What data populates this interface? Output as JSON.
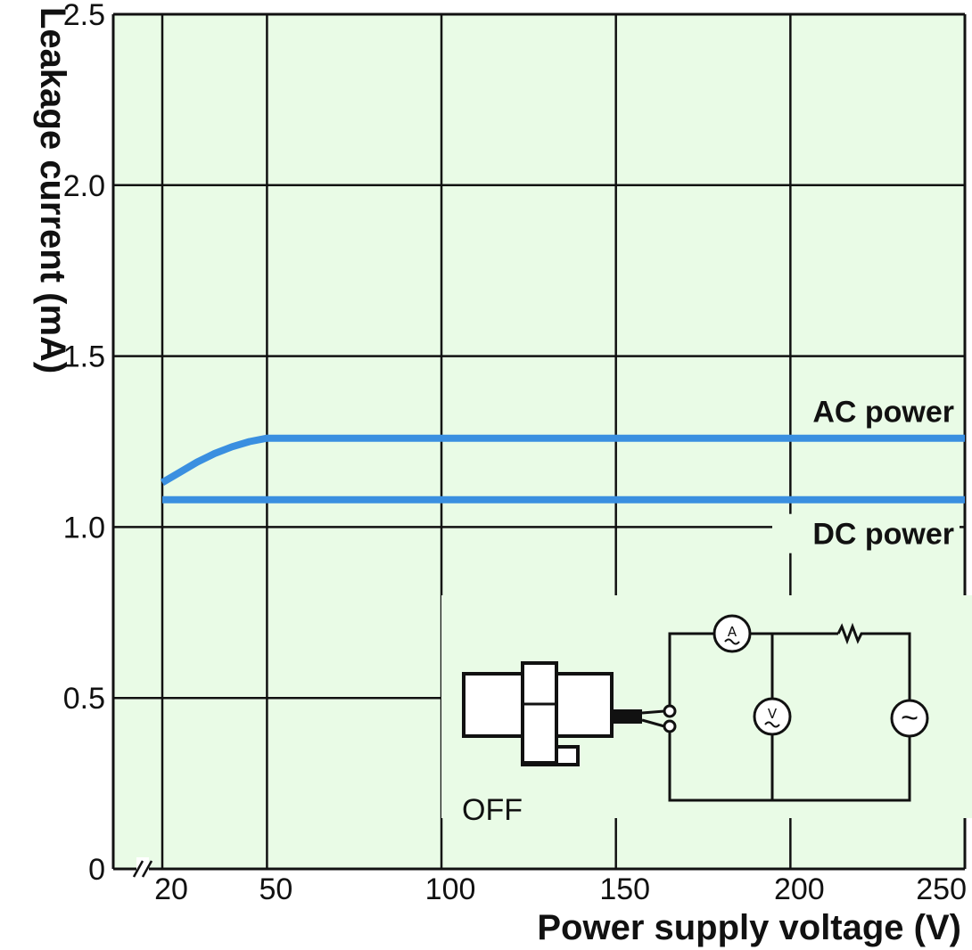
{
  "chart_data": {
    "type": "line",
    "xlabel": "Power supply voltage (V)",
    "ylabel": "Leakage current (mA)",
    "xlim": [
      20,
      250
    ],
    "ylim": [
      0,
      2.5
    ],
    "x_ticks": [
      20,
      50,
      100,
      150,
      200,
      250
    ],
    "y_ticks": [
      0,
      0.5,
      1.0,
      1.5,
      2.0,
      2.5
    ],
    "y_tick_labels": [
      "0",
      "0.5",
      "1.0",
      "1.5",
      "2.0",
      "2.5"
    ],
    "grid": true,
    "axis_break": "x-start",
    "series": [
      {
        "name": "AC power",
        "color": "#3a8fe0",
        "x": [
          20,
          25,
          30,
          35,
          40,
          45,
          50,
          100,
          150,
          200,
          250
        ],
        "y": [
          1.13,
          1.16,
          1.19,
          1.215,
          1.235,
          1.25,
          1.26,
          1.26,
          1.26,
          1.26,
          1.26
        ]
      },
      {
        "name": "DC power",
        "color": "#3a8fe0",
        "x": [
          20,
          50,
          100,
          150,
          200,
          250
        ],
        "y": [
          1.08,
          1.08,
          1.08,
          1.08,
          1.08,
          1.08
        ]
      }
    ],
    "background_color": "#e9fbe6",
    "inset": {
      "label": "OFF",
      "meter_ammeter": "A",
      "meter_voltmeter": "V",
      "source_symbol": "~"
    }
  }
}
